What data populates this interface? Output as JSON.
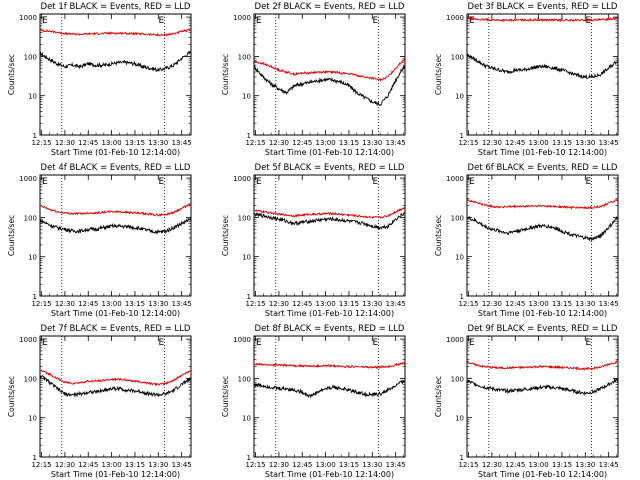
{
  "xlabel": "Start Time (01-Feb-10 12:14:00)",
  "ylabel": "Counts/sec",
  "x_ticks": [
    "12:15",
    "12:30",
    "12:45",
    "13:00",
    "13:15",
    "13:30",
    "13:45"
  ],
  "y_ticks": [
    "1",
    "10",
    "100",
    "1000"
  ],
  "markers": [
    "E",
    "E"
  ],
  "colors": {
    "events": "#000000",
    "lld": "#dd0000"
  },
  "chart_data": [
    {
      "type": "line",
      "title": "Det 1f BLACK = Events, RED = LLD",
      "x_range": [
        "12:14",
        "13:51"
      ],
      "ylim": [
        1,
        1200
      ],
      "yscale": "log",
      "event_lines_at": [
        "12:28",
        "13:34"
      ],
      "series": [
        {
          "name": "BLACK = Events",
          "x": [
            "12:14",
            "12:20",
            "12:25",
            "12:30",
            "12:35",
            "12:40",
            "12:45",
            "12:50",
            "12:55",
            "13:00",
            "13:05",
            "13:10",
            "13:15",
            "13:20",
            "13:25",
            "13:30",
            "13:35",
            "13:40",
            "13:45",
            "13:51"
          ],
          "values": [
            120,
            85,
            65,
            55,
            60,
            55,
            65,
            60,
            60,
            65,
            70,
            70,
            65,
            55,
            50,
            45,
            50,
            60,
            90,
            130
          ]
        },
        {
          "name": "RED = LLD",
          "x": [
            "12:14",
            "12:20",
            "12:25",
            "12:30",
            "12:35",
            "12:40",
            "12:45",
            "12:50",
            "12:55",
            "13:00",
            "13:05",
            "13:10",
            "13:15",
            "13:20",
            "13:25",
            "13:30",
            "13:35",
            "13:40",
            "13:45",
            "13:51"
          ],
          "values": [
            460,
            440,
            410,
            380,
            370,
            365,
            375,
            380,
            385,
            390,
            390,
            385,
            380,
            370,
            360,
            350,
            355,
            380,
            430,
            470
          ]
        }
      ]
    },
    {
      "type": "line",
      "title": "Det 2f BLACK = Events, RED = LLD",
      "x_range": [
        "12:14",
        "13:51"
      ],
      "ylim": [
        1,
        1200
      ],
      "yscale": "log",
      "event_lines_at": [
        "12:28",
        "13:34"
      ],
      "series": [
        {
          "name": "BLACK = Events",
          "x": [
            "12:14",
            "12:20",
            "12:25",
            "12:30",
            "12:35",
            "12:40",
            "12:45",
            "12:50",
            "12:55",
            "13:00",
            "13:05",
            "13:10",
            "13:15",
            "13:20",
            "13:25",
            "13:30",
            "13:35",
            "13:40",
            "13:45",
            "13:51"
          ],
          "values": [
            55,
            30,
            20,
            15,
            12,
            18,
            20,
            22,
            24,
            26,
            25,
            22,
            18,
            12,
            9,
            7,
            6,
            10,
            25,
            60
          ]
        },
        {
          "name": "RED = LLD",
          "x": [
            "12:14",
            "12:20",
            "12:25",
            "12:30",
            "12:35",
            "12:40",
            "12:45",
            "12:50",
            "12:55",
            "13:00",
            "13:05",
            "13:10",
            "13:15",
            "13:20",
            "13:25",
            "13:30",
            "13:35",
            "13:40",
            "13:45",
            "13:51"
          ],
          "values": [
            75,
            65,
            55,
            45,
            40,
            35,
            38,
            38,
            40,
            40,
            40,
            38,
            36,
            33,
            30,
            28,
            25,
            30,
            50,
            90
          ]
        }
      ]
    },
    {
      "type": "line",
      "title": "Det 3f BLACK = Events, RED = LLD",
      "x_range": [
        "12:14",
        "13:51"
      ],
      "ylim": [
        1,
        1200
      ],
      "yscale": "log",
      "event_lines_at": [
        "12:28",
        "13:34"
      ],
      "series": [
        {
          "name": "BLACK = Events",
          "x": [
            "12:14",
            "12:20",
            "12:25",
            "12:30",
            "12:35",
            "12:40",
            "12:45",
            "12:50",
            "12:55",
            "13:00",
            "13:05",
            "13:10",
            "13:15",
            "13:20",
            "13:25",
            "13:30",
            "13:35",
            "13:40",
            "13:45",
            "13:51"
          ],
          "values": [
            110,
            80,
            60,
            50,
            45,
            40,
            45,
            45,
            50,
            55,
            55,
            50,
            45,
            38,
            33,
            30,
            30,
            35,
            50,
            80
          ]
        },
        {
          "name": "RED = LLD",
          "x": [
            "12:14",
            "12:20",
            "12:25",
            "12:30",
            "12:35",
            "12:40",
            "12:45",
            "12:50",
            "12:55",
            "13:00",
            "13:05",
            "13:10",
            "13:15",
            "13:20",
            "13:25",
            "13:30",
            "13:35",
            "13:40",
            "13:45",
            "13:51"
          ],
          "values": [
            950,
            880,
            860,
            850,
            840,
            830,
            840,
            845,
            850,
            850,
            850,
            845,
            840,
            830,
            830,
            830,
            840,
            850,
            900,
            950
          ]
        }
      ]
    },
    {
      "type": "line",
      "title": "Det 4f BLACK = Events, RED = LLD",
      "x_range": [
        "12:14",
        "13:51"
      ],
      "ylim": [
        1,
        1200
      ],
      "yscale": "log",
      "event_lines_at": [
        "12:28",
        "13:34"
      ],
      "series": [
        {
          "name": "BLACK = Events",
          "x": [
            "12:14",
            "12:20",
            "12:25",
            "12:30",
            "12:35",
            "12:40",
            "12:45",
            "12:50",
            "12:55",
            "13:00",
            "13:05",
            "13:10",
            "13:15",
            "13:20",
            "13:25",
            "13:30",
            "13:35",
            "13:40",
            "13:45",
            "13:51"
          ],
          "values": [
            85,
            65,
            55,
            50,
            45,
            45,
            50,
            50,
            55,
            60,
            60,
            58,
            55,
            50,
            45,
            42,
            45,
            55,
            70,
            90
          ]
        },
        {
          "name": "RED = LLD",
          "x": [
            "12:14",
            "12:20",
            "12:25",
            "12:30",
            "12:35",
            "12:40",
            "12:45",
            "12:50",
            "12:55",
            "13:00",
            "13:05",
            "13:10",
            "13:15",
            "13:20",
            "13:25",
            "13:30",
            "13:35",
            "13:40",
            "13:45",
            "13:51"
          ],
          "values": [
            200,
            160,
            140,
            130,
            125,
            125,
            130,
            130,
            135,
            140,
            140,
            135,
            130,
            125,
            120,
            115,
            120,
            135,
            170,
            220
          ]
        }
      ]
    },
    {
      "type": "line",
      "title": "Det 5f BLACK = Events, RED = LLD",
      "x_range": [
        "12:14",
        "13:51"
      ],
      "ylim": [
        1,
        1200
      ],
      "yscale": "log",
      "event_lines_at": [
        "12:28",
        "13:34"
      ],
      "series": [
        {
          "name": "BLACK = Events",
          "x": [
            "12:14",
            "12:20",
            "12:25",
            "12:30",
            "12:35",
            "12:40",
            "12:45",
            "12:50",
            "12:55",
            "13:00",
            "13:05",
            "13:10",
            "13:15",
            "13:20",
            "13:25",
            "13:30",
            "13:35",
            "13:40",
            "13:45",
            "13:51"
          ],
          "values": [
            120,
            110,
            100,
            90,
            80,
            70,
            75,
            80,
            85,
            90,
            90,
            85,
            80,
            75,
            70,
            60,
            55,
            60,
            90,
            130
          ]
        },
        {
          "name": "RED = LLD",
          "x": [
            "12:14",
            "12:20",
            "12:25",
            "12:30",
            "12:35",
            "12:40",
            "12:45",
            "12:50",
            "12:55",
            "13:00",
            "13:05",
            "13:10",
            "13:15",
            "13:20",
            "13:25",
            "13:30",
            "13:35",
            "13:40",
            "13:45",
            "13:51"
          ],
          "values": [
            150,
            140,
            130,
            120,
            115,
            110,
            115,
            120,
            120,
            125,
            125,
            120,
            115,
            110,
            105,
            100,
            100,
            110,
            140,
            180
          ]
        }
      ]
    },
    {
      "type": "line",
      "title": "Det 6f BLACK = Events, RED = LLD",
      "x_range": [
        "12:14",
        "13:51"
      ],
      "ylim": [
        1,
        1200
      ],
      "yscale": "log",
      "event_lines_at": [
        "12:28",
        "13:34"
      ],
      "series": [
        {
          "name": "BLACK = Events",
          "x": [
            "12:14",
            "12:20",
            "12:25",
            "12:30",
            "12:35",
            "12:40",
            "12:45",
            "12:50",
            "12:55",
            "13:00",
            "13:05",
            "13:10",
            "13:15",
            "13:20",
            "13:25",
            "13:30",
            "13:35",
            "13:40",
            "13:45",
            "13:51"
          ],
          "values": [
            100,
            80,
            60,
            50,
            45,
            40,
            45,
            48,
            55,
            60,
            60,
            55,
            45,
            38,
            33,
            30,
            28,
            35,
            55,
            100
          ]
        },
        {
          "name": "RED = LLD",
          "x": [
            "12:14",
            "12:20",
            "12:25",
            "12:30",
            "12:35",
            "12:40",
            "12:45",
            "12:50",
            "12:55",
            "13:00",
            "13:05",
            "13:10",
            "13:15",
            "13:20",
            "13:25",
            "13:30",
            "13:35",
            "13:40",
            "13:45",
            "13:51"
          ],
          "values": [
            280,
            240,
            210,
            190,
            185,
            185,
            190,
            190,
            195,
            195,
            195,
            190,
            185,
            180,
            178,
            175,
            178,
            190,
            230,
            280
          ]
        }
      ]
    },
    {
      "type": "line",
      "title": "Det 7f BLACK = Events, RED = LLD",
      "x_range": [
        "12:14",
        "13:51"
      ],
      "ylim": [
        1,
        1200
      ],
      "yscale": "log",
      "event_lines_at": [
        "12:28",
        "13:34"
      ],
      "series": [
        {
          "name": "BLACK = Events",
          "x": [
            "12:14",
            "12:20",
            "12:25",
            "12:30",
            "12:35",
            "12:40",
            "12:45",
            "12:50",
            "12:55",
            "13:00",
            "13:05",
            "13:10",
            "13:15",
            "13:20",
            "13:25",
            "13:30",
            "13:35",
            "13:40",
            "13:45",
            "13:51"
          ],
          "values": [
            120,
            80,
            55,
            40,
            38,
            40,
            45,
            45,
            50,
            55,
            55,
            50,
            48,
            45,
            40,
            38,
            40,
            50,
            70,
            100
          ]
        },
        {
          "name": "RED = LLD",
          "x": [
            "12:14",
            "12:20",
            "12:25",
            "12:30",
            "12:35",
            "12:40",
            "12:45",
            "12:50",
            "12:55",
            "13:00",
            "13:05",
            "13:10",
            "13:15",
            "13:20",
            "13:25",
            "13:30",
            "13:35",
            "13:40",
            "13:45",
            "13:51"
          ],
          "values": [
            160,
            130,
            100,
            80,
            75,
            78,
            85,
            85,
            90,
            95,
            95,
            90,
            85,
            80,
            75,
            70,
            75,
            90,
            120,
            160
          ]
        }
      ]
    },
    {
      "type": "line",
      "title": "Det 8f BLACK = Events, RED = LLD",
      "x_range": [
        "12:14",
        "13:51"
      ],
      "ylim": [
        1,
        1200
      ],
      "yscale": "log",
      "event_lines_at": [
        "12:28",
        "13:34"
      ],
      "series": [
        {
          "name": "BLACK = Events",
          "x": [
            "12:14",
            "12:20",
            "12:25",
            "12:30",
            "12:35",
            "12:40",
            "12:45",
            "12:50",
            "12:55",
            "13:00",
            "13:05",
            "13:10",
            "13:15",
            "13:20",
            "13:25",
            "13:30",
            "13:35",
            "13:40",
            "13:45",
            "13:51"
          ],
          "values": [
            70,
            65,
            60,
            55,
            55,
            50,
            45,
            35,
            45,
            55,
            60,
            55,
            50,
            45,
            40,
            38,
            40,
            50,
            65,
            90
          ]
        },
        {
          "name": "RED = LLD",
          "x": [
            "12:14",
            "12:20",
            "12:25",
            "12:30",
            "12:35",
            "12:40",
            "12:45",
            "12:50",
            "12:55",
            "13:00",
            "13:05",
            "13:10",
            "13:15",
            "13:20",
            "13:25",
            "13:30",
            "13:35",
            "13:40",
            "13:45",
            "13:51"
          ],
          "values": [
            230,
            225,
            220,
            220,
            215,
            210,
            210,
            205,
            205,
            210,
            210,
            205,
            200,
            200,
            195,
            190,
            195,
            200,
            220,
            250
          ]
        }
      ]
    },
    {
      "type": "line",
      "title": "Det 9f BLACK = Events, RED = LLD",
      "x_range": [
        "12:14",
        "13:51"
      ],
      "ylim": [
        1,
        1200
      ],
      "yscale": "log",
      "event_lines_at": [
        "12:28",
        "13:34"
      ],
      "series": [
        {
          "name": "BLACK = Events",
          "x": [
            "12:14",
            "12:20",
            "12:25",
            "12:30",
            "12:35",
            "12:40",
            "12:45",
            "12:50",
            "12:55",
            "13:00",
            "13:05",
            "13:10",
            "13:15",
            "13:20",
            "13:25",
            "13:30",
            "13:35",
            "13:40",
            "13:45",
            "13:51"
          ],
          "values": [
            85,
            70,
            60,
            55,
            50,
            48,
            50,
            52,
            55,
            58,
            60,
            58,
            55,
            50,
            45,
            42,
            45,
            55,
            70,
            95
          ]
        },
        {
          "name": "RED = LLD",
          "x": [
            "12:14",
            "12:20",
            "12:25",
            "12:30",
            "12:35",
            "12:40",
            "12:45",
            "12:50",
            "12:55",
            "13:00",
            "13:05",
            "13:10",
            "13:15",
            "13:20",
            "13:25",
            "13:30",
            "13:35",
            "13:40",
            "13:45",
            "13:51"
          ],
          "values": [
            260,
            220,
            200,
            190,
            185,
            185,
            190,
            190,
            195,
            200,
            200,
            195,
            190,
            185,
            180,
            175,
            180,
            195,
            230,
            270
          ]
        }
      ]
    }
  ]
}
